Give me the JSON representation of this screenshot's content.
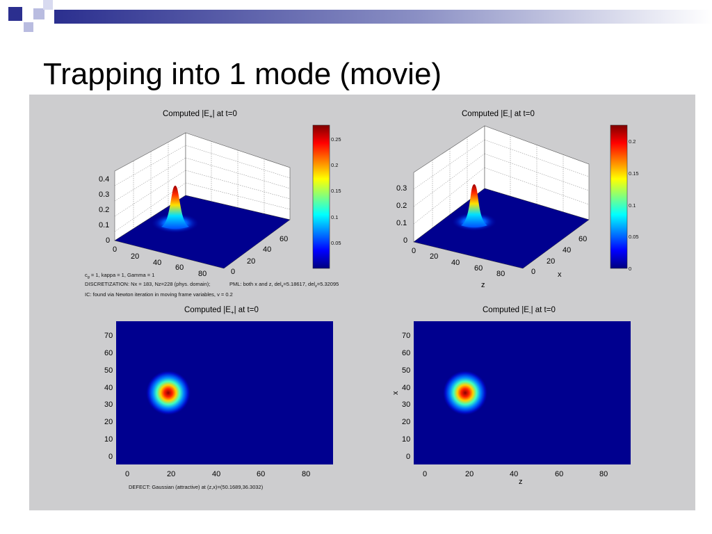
{
  "slide": {
    "title": "Trapping into 1 mode (movie)",
    "accent_color": "#2b2f8f"
  },
  "figure": {
    "background": "#cdcdcf",
    "plots": {
      "top_left": {
        "title_prefix": "Computed |E",
        "title_sub": "+",
        "title_suffix": "| at t=0",
        "z_ticks": [
          "0",
          "0.1",
          "0.2",
          "0.3",
          "0.4"
        ],
        "z_axis_ticks": [
          "0",
          "20",
          "40",
          "60",
          "80"
        ],
        "x_axis_ticks": [
          "0",
          "20",
          "40",
          "60"
        ],
        "colorbar_ticks": [
          "0.05",
          "0.1",
          "0.15",
          "0.2",
          "0.25"
        ]
      },
      "top_right": {
        "title_prefix": "Computed |E",
        "title_sub": "-",
        "title_suffix": "| at t=0",
        "z_ticks": [
          "0",
          "0.1",
          "0.2",
          "0.3"
        ],
        "z_axis_ticks": [
          "0",
          "20",
          "40",
          "60",
          "80"
        ],
        "x_axis_ticks": [
          "0",
          "20",
          "40",
          "60"
        ],
        "xlabel": "z",
        "ylabel": "x",
        "colorbar_ticks": [
          "0",
          "0.05",
          "0.1",
          "0.15",
          "0.2"
        ]
      },
      "bottom_left": {
        "title_prefix": "Computed |E",
        "title_sub": "+",
        "title_suffix": "| at t=0",
        "y_ticks": [
          "0",
          "10",
          "20",
          "30",
          "40",
          "50",
          "60",
          "70"
        ],
        "x_ticks": [
          "0",
          "20",
          "40",
          "60",
          "80"
        ]
      },
      "bottom_right": {
        "title_prefix": "Computed |E",
        "title_sub": "-",
        "title_suffix": "| at t=0",
        "y_ticks": [
          "0",
          "10",
          "20",
          "30",
          "40",
          "50",
          "60",
          "70"
        ],
        "x_ticks": [
          "0",
          "20",
          "40",
          "60",
          "80"
        ],
        "xlabel": "z",
        "ylabel": "x"
      }
    },
    "params": {
      "c_prefix": "c",
      "c_sub": "g",
      "c_rest": " = 1, kappa = 1, Gamma = 1",
      "discretization": "DISCRETIZATION: Nx = 183, Nz=228 (phys. domain);",
      "pml_prefix": "PML: both x and z, del",
      "pml_sub1": "x",
      "pml_mid": "=5.18617, del",
      "pml_sub2": "z",
      "pml_end": "=5.32095",
      "ic": "IC: found via Newton iteration in moving frame variables, v = 0.2",
      "defect": "DEFECT: Gaussian (attractive) at (z,x)=(50.1689,36.3032)"
    }
  }
}
